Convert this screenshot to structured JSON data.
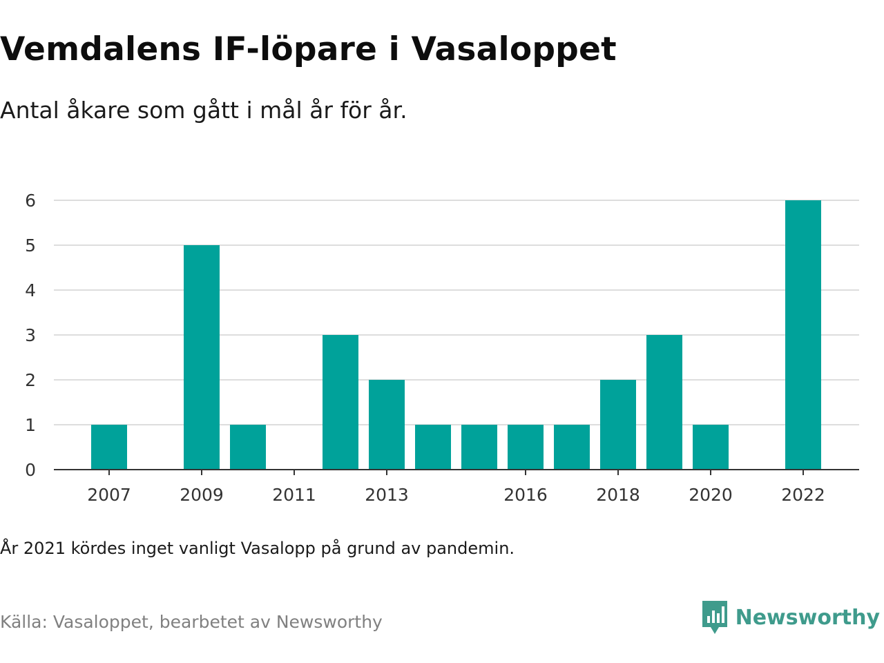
{
  "title": "Vemdalens IF-löpare i Vasaloppet",
  "subtitle": "Antal åkare som gått i mål år för år.",
  "note": "År 2021 kördes inget vanligt Vasalopp på grund av pandemin.",
  "source": "Källa: Vasaloppet, bearbetet av Newsworthy",
  "brand": {
    "name": "Newsworthy",
    "icon": "newsworthy-logo-icon",
    "color": "#3f9b8c"
  },
  "colors": {
    "bar": "#00a29a",
    "grid": "#dddddd",
    "axis": "#333333"
  },
  "chart_data": {
    "type": "bar",
    "categories": [
      "2007",
      "2008",
      "2009",
      "2010",
      "2011",
      "2012",
      "2013",
      "2014",
      "2015",
      "2016",
      "2017",
      "2018",
      "2019",
      "2020",
      "2021",
      "2022"
    ],
    "values": [
      1,
      0,
      5,
      1,
      0,
      3,
      2,
      1,
      1,
      1,
      1,
      2,
      3,
      1,
      0,
      6
    ],
    "x_tick_labels": [
      "2007",
      "2009",
      "2011",
      "2013",
      "2016",
      "2018",
      "2020",
      "2022"
    ],
    "y_ticks": [
      0,
      1,
      2,
      3,
      4,
      5,
      6
    ],
    "ylim": [
      0,
      6
    ],
    "grid": true,
    "xlabel": "",
    "ylabel": ""
  }
}
